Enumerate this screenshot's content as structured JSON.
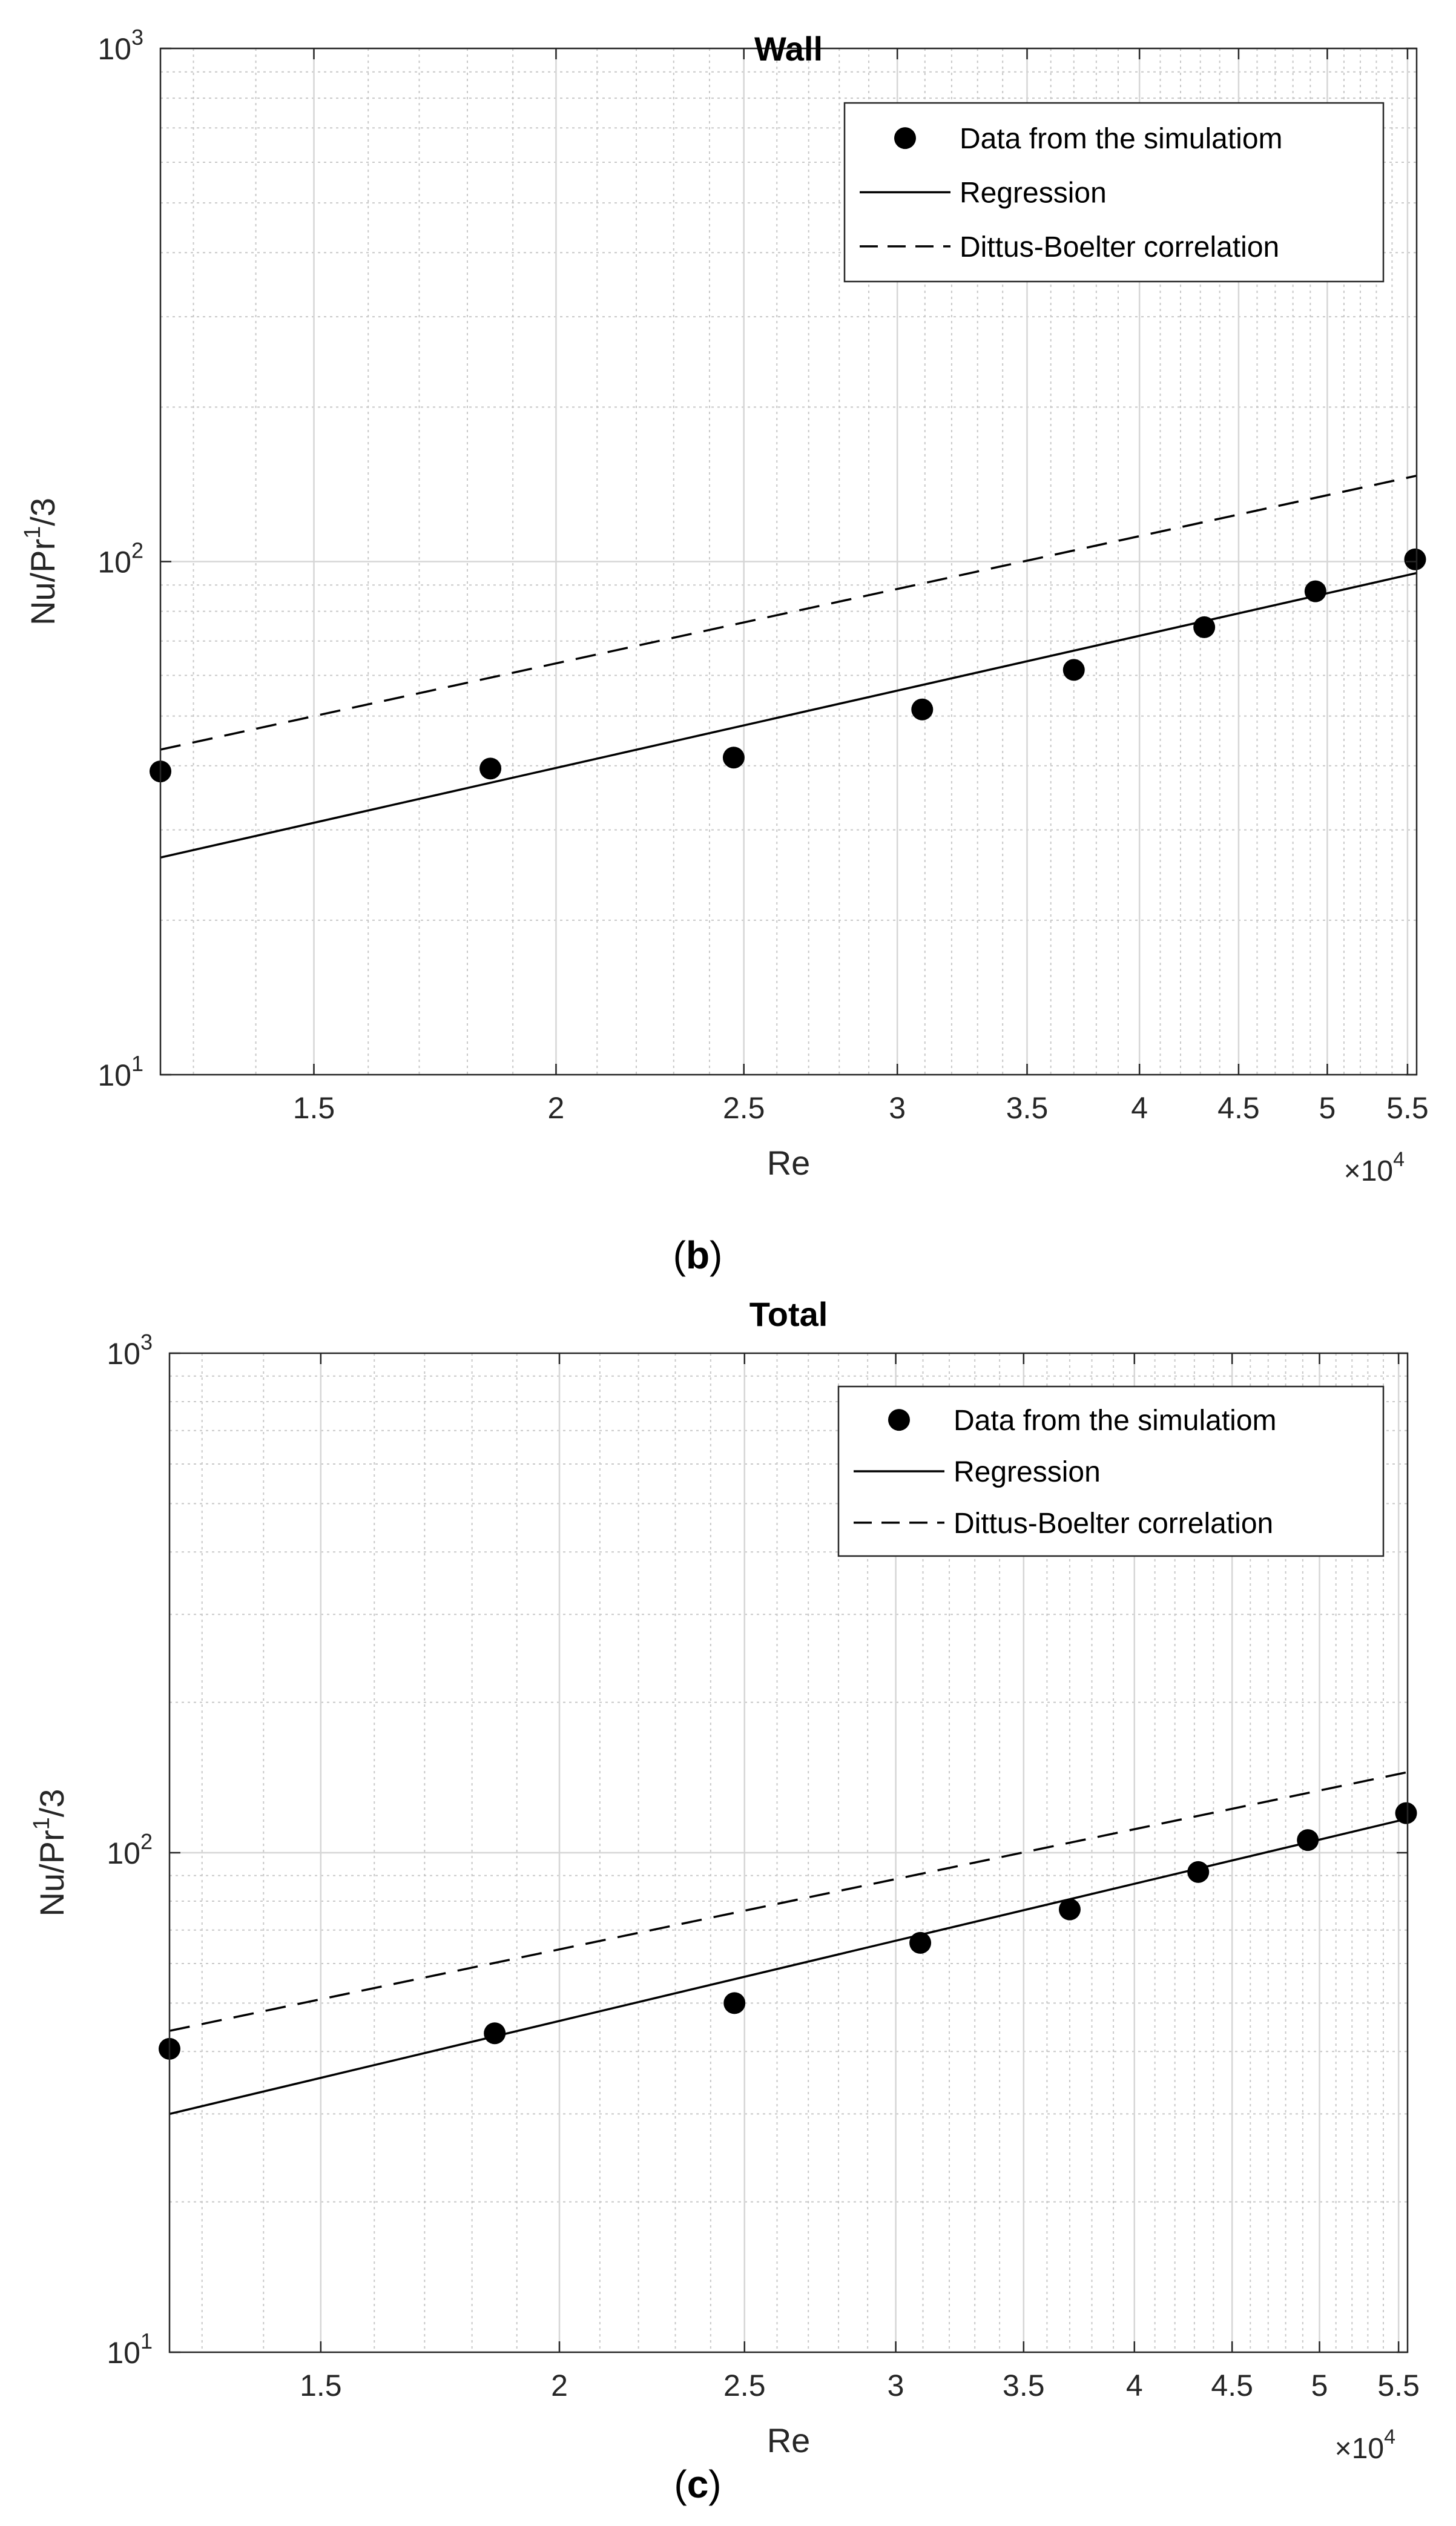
{
  "panels": [
    {
      "label": "b"
    },
    {
      "label": "c"
    }
  ],
  "legend_entries": [
    "Data from the simulatiom",
    "Regression",
    "Dittus-Boelter correlation"
  ],
  "y_axis_label_base": "Nu/Pr",
  "y_axis_label_sup": "1",
  "y_axis_label_tail": "/3",
  "x_axis_multiplier_base": "×10",
  "x_axis_multiplier_exp": "4",
  "chart_data": [
    {
      "type": "scatter",
      "title": "Wall",
      "xlabel": "Re",
      "ylabel": "Nu/Pr^1/3",
      "xscale": "log",
      "yscale": "log",
      "xlim": [
        12500,
        55600
      ],
      "ylim": [
        10,
        1000
      ],
      "x_ticks": [
        15000,
        20000,
        25000,
        30000,
        35000,
        40000,
        45000,
        50000,
        55000
      ],
      "x_tick_labels": [
        "1.5",
        "2",
        "2.5",
        "3",
        "3.5",
        "4",
        "4.5",
        "5",
        "5.5"
      ],
      "x_multiplier": "×10^4",
      "y_ticks": [
        10,
        100,
        1000
      ],
      "y_tick_labels": [
        "10^1",
        "10^2",
        "10^3"
      ],
      "grid": true,
      "legend_position": "top-right",
      "series": [
        {
          "name": "Data from the simulatiom",
          "kind": "markers",
          "x": [
            12500,
            18500,
            24700,
            30900,
            37000,
            43200,
            49300,
            55500
          ],
          "y": [
            39,
            39.5,
            41.5,
            51.5,
            61.5,
            74.5,
            87.5,
            101
          ]
        },
        {
          "name": "Regression",
          "kind": "solid-line",
          "x": [
            12500,
            55600
          ],
          "y": [
            26.5,
            95
          ]
        },
        {
          "name": "Dittus-Boelter correlation",
          "kind": "dashed-line",
          "x": [
            12500,
            55600
          ],
          "y": [
            43,
            147
          ]
        }
      ]
    },
    {
      "type": "scatter",
      "title": "Total",
      "xlabel": "Re",
      "ylabel": "Nu/Pr^1/3",
      "xscale": "log",
      "yscale": "log",
      "xlim": [
        12500,
        55600
      ],
      "ylim": [
        10,
        1000
      ],
      "x_ticks": [
        15000,
        20000,
        25000,
        30000,
        35000,
        40000,
        45000,
        50000,
        55000
      ],
      "x_tick_labels": [
        "1.5",
        "2",
        "2.5",
        "3",
        "3.5",
        "4",
        "4.5",
        "5",
        "5.5"
      ],
      "x_multiplier": "×10^4",
      "y_ticks": [
        10,
        100,
        1000
      ],
      "y_tick_labels": [
        "10^1",
        "10^2",
        "10^3"
      ],
      "grid": true,
      "legend_position": "top-right",
      "series": [
        {
          "name": "Data from the simulatiom",
          "kind": "markers",
          "x": [
            12500,
            18500,
            24700,
            30900,
            37000,
            43200,
            49300,
            55500
          ],
          "y": [
            40.5,
            43.5,
            50,
            66,
            77,
            91.5,
            106,
            120
          ]
        },
        {
          "name": "Regression",
          "kind": "solid-line",
          "x": [
            12500,
            55600
          ],
          "y": [
            30,
            117
          ]
        },
        {
          "name": "Dittus-Boelter correlation",
          "kind": "dashed-line",
          "x": [
            12500,
            55600
          ],
          "y": [
            44,
            145
          ]
        }
      ]
    }
  ]
}
